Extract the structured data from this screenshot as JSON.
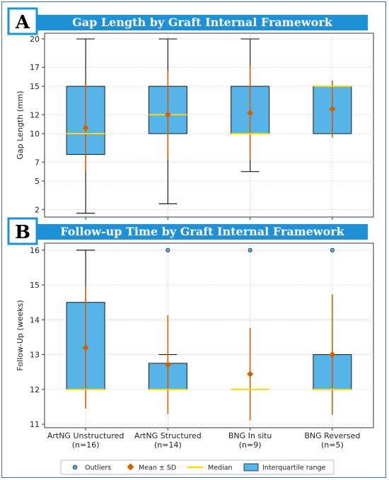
{
  "colors": {
    "box_fill": "#56B4E9",
    "box_edge": "#1a1a1a",
    "median": "#FFD700",
    "mean": "#D55E00",
    "title_bar": "#1E90D6",
    "grid": "#cccccc",
    "outlier": "#56B4E9"
  },
  "panel_a": {
    "letter": "A",
    "title": "Gap Length by Graft Internal Framework"
  },
  "panel_b": {
    "letter": "B",
    "title": "Follow-up Time by Graft Internal Framework"
  },
  "legend": {
    "outliers": "Outliers",
    "mean": "Mean ± SD",
    "median": "Median",
    "iqr": "Interquartile range"
  },
  "chart_data": [
    {
      "type": "box",
      "title": "Gap Length by Graft Internal Framework",
      "ylabel": "Gap Length (mm)",
      "ylim": [
        1.2,
        20.6
      ],
      "yticks": [
        2,
        5,
        7,
        10,
        12,
        15,
        17,
        20
      ],
      "grid": true,
      "categories": [
        "ArtNG Unstructured",
        "ArtNG Structured",
        "BNG In situ",
        "BNG Reversed"
      ],
      "boxes": [
        {
          "whislo": 1.6,
          "q1": 7.8,
          "med": 10.0,
          "q3": 15.0,
          "whishi": 20.0,
          "mean": 10.6,
          "sd": 4.6,
          "outliers": []
        },
        {
          "whislo": 2.6,
          "q1": 10.0,
          "med": 12.0,
          "q3": 15.0,
          "whishi": 20.0,
          "mean": 12.0,
          "sd": 4.7,
          "outliers": []
        },
        {
          "whislo": 6.0,
          "q1": 10.0,
          "med": 10.0,
          "q3": 15.0,
          "whishi": 20.0,
          "mean": 12.2,
          "sd": 5.0,
          "outliers": []
        },
        {
          "whislo": 10.0,
          "q1": 10.0,
          "med": 15.0,
          "q3": 15.0,
          "whishi": 15.0,
          "mean": 12.6,
          "sd": 3.0,
          "outliers": []
        }
      ]
    },
    {
      "type": "box",
      "title": "Follow-up Time by Graft Internal Framework",
      "ylabel": "Follow-Up (weeks)",
      "ylim": [
        10.9,
        16.2
      ],
      "yticks": [
        11,
        12,
        13,
        14,
        15,
        16
      ],
      "grid": true,
      "categories": [
        "ArtNG Unstructured",
        "ArtNG Structured",
        "BNG In situ",
        "BNG Reversed"
      ],
      "category_labels": [
        [
          "ArtNG Unstructured",
          "(n=16)"
        ],
        [
          "ArtNG Structured",
          "(n=14)"
        ],
        [
          "BNG In situ",
          "(n=9)"
        ],
        [
          "BNG Reversed",
          "(n=5)"
        ]
      ],
      "boxes": [
        {
          "whislo": 12.0,
          "q1": 12.0,
          "med": 12.0,
          "q3": 14.5,
          "whishi": 16.0,
          "mean": 13.2,
          "sd": 1.75,
          "outliers": []
        },
        {
          "whislo": 12.0,
          "q1": 12.0,
          "med": 12.0,
          "q3": 12.75,
          "whishi": 13.0,
          "mean": 12.71,
          "sd": 1.42,
          "outliers": [
            16
          ]
        },
        {
          "whislo": 12.0,
          "q1": 12.0,
          "med": 12.0,
          "q3": 12.0,
          "whishi": 12.0,
          "mean": 12.44,
          "sd": 1.33,
          "outliers": [
            16
          ]
        },
        {
          "whislo": 12.0,
          "q1": 12.0,
          "med": 12.0,
          "q3": 13.0,
          "whishi": 13.0,
          "mean": 13.0,
          "sd": 1.73,
          "outliers": [
            16
          ]
        }
      ]
    }
  ]
}
